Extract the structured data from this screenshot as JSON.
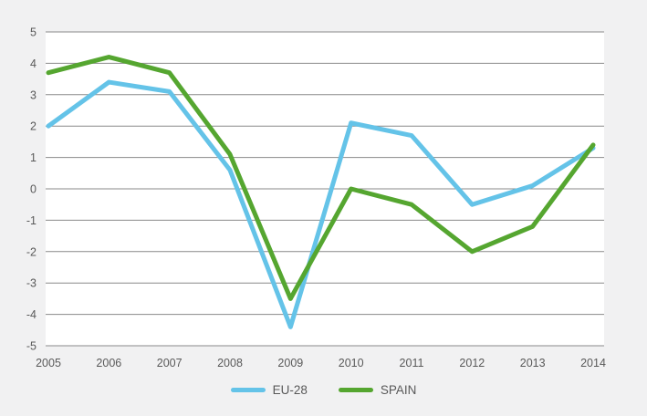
{
  "chart_data": {
    "type": "line",
    "x": [
      2005,
      2006,
      2007,
      2008,
      2009,
      2010,
      2011,
      2012,
      2013,
      2014
    ],
    "series": [
      {
        "name": "EU-28",
        "color": "#64C3E8",
        "values": [
          2.0,
          3.4,
          3.1,
          0.6,
          -4.4,
          2.1,
          1.7,
          -0.5,
          0.1,
          1.3
        ]
      },
      {
        "name": "SPAIN",
        "color": "#55A630",
        "values": [
          3.7,
          4.2,
          3.7,
          1.1,
          -3.5,
          0.0,
          -0.5,
          -2.0,
          -1.2,
          1.4
        ]
      }
    ],
    "title": "",
    "xlabel": "",
    "ylabel": "",
    "ylim": [
      -5,
      5
    ],
    "yticks": [
      5,
      4,
      3,
      2,
      1,
      0,
      -1,
      -2,
      -3,
      -4,
      -5
    ],
    "grid": true,
    "legend_position": "bottom-center"
  },
  "style": {
    "page_bg": "#F1F1F2",
    "plot_bg": "#FFFFFF",
    "gridline_color": "#898989",
    "label_color": "#595959",
    "tick_font_size": 12.5,
    "line_width": 5
  }
}
